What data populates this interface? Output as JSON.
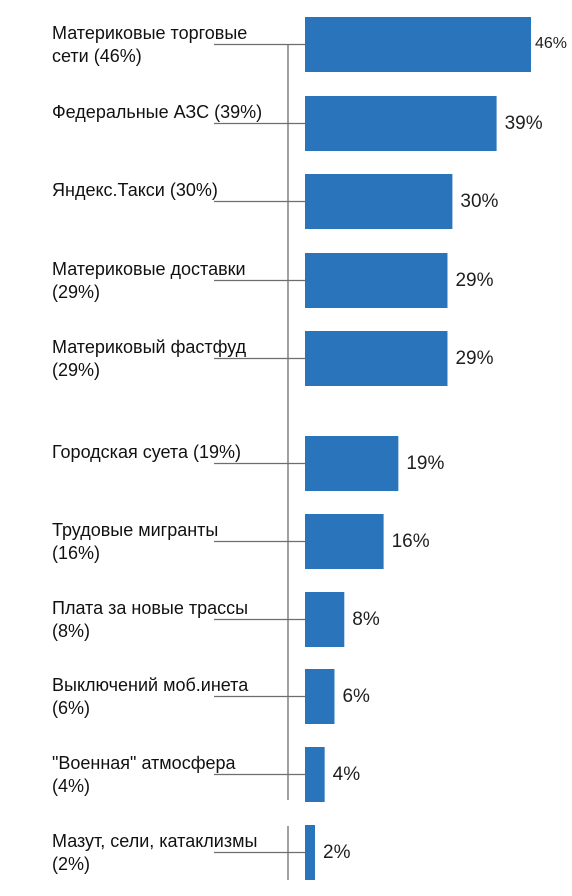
{
  "chart_data": {
    "type": "bar",
    "orientation": "horizontal",
    "categories": [
      "Материковые торговые сети (46%)",
      "Федеральные АЗС (39%)",
      "Яндекс.Такси (30%)",
      "Материковые доставки (29%)",
      "Материковый фастфуд (29%)",
      "Городская суета (19%)",
      "Трудовые мигранты (16%)",
      "Плата за новые трассы (8%)",
      "Выключений моб.инета (6%)",
      "\"Военная\" атмосфера (4%)",
      "Мазут, сели, катаклизмы (2%)"
    ],
    "values": [
      46,
      39,
      30,
      29,
      29,
      19,
      16,
      8,
      6,
      4,
      2
    ],
    "value_labels": [
      "46%",
      "39%",
      "30%",
      "29%",
      "29%",
      "19%",
      "16%",
      "8%",
      "6%",
      "4%",
      "2%"
    ],
    "title": "",
    "xlabel": "",
    "ylabel": "",
    "xlim": [
      0,
      46
    ],
    "grid": false,
    "legend": "none",
    "bar_color": "#2a74bb",
    "leader_color": "#6e6e6e"
  }
}
